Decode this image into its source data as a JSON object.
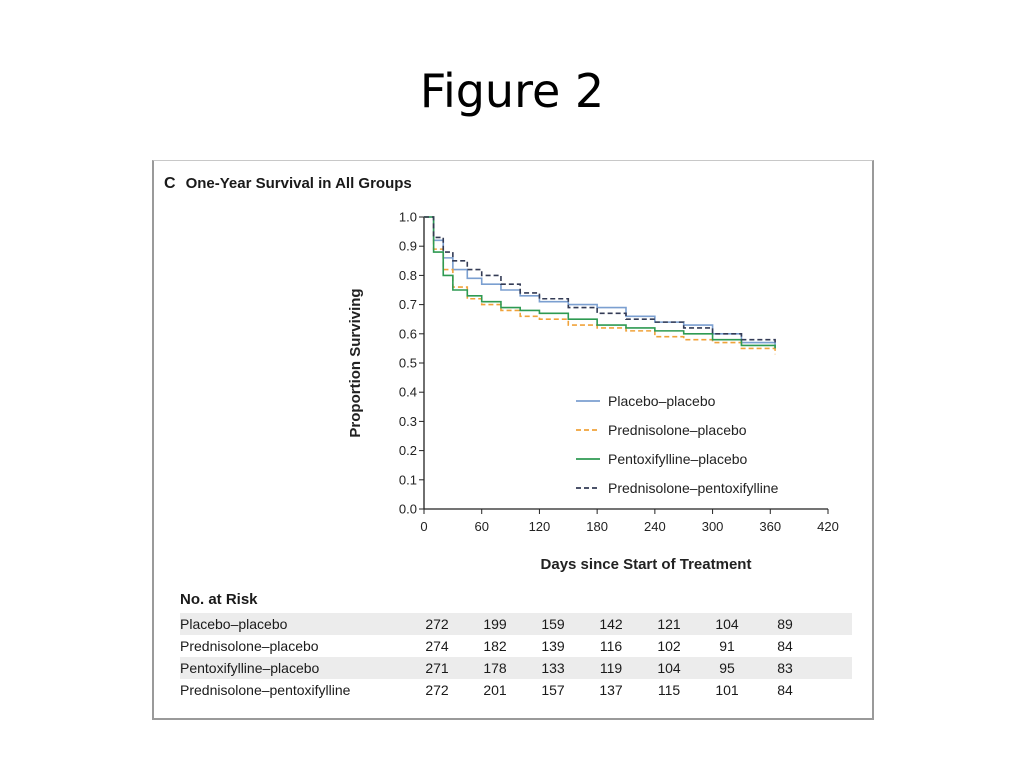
{
  "slide": {
    "title": "Figure 2"
  },
  "panel": {
    "letter": "C",
    "title": "One-Year Survival in All Groups"
  },
  "chart_data": {
    "type": "line",
    "title": "One-Year Survival in All Groups",
    "xlabel": "Days since Start of Treatment",
    "ylabel": "Proportion Surviving",
    "xlim": [
      0,
      420
    ],
    "ylim": [
      0,
      1.0
    ],
    "xticks": [
      0,
      60,
      120,
      180,
      240,
      300,
      360,
      420
    ],
    "yticks": [
      "0.0",
      "0.1",
      "0.2",
      "0.3",
      "0.4",
      "0.5",
      "0.6",
      "0.7",
      "0.8",
      "0.9",
      "1.0"
    ],
    "grid": false,
    "legend_position": "lower-right",
    "series": [
      {
        "name": "Placebo–placebo",
        "color": "#7b9fd0",
        "dash": "solid",
        "x": [
          0,
          10,
          20,
          30,
          45,
          60,
          80,
          100,
          120,
          150,
          180,
          210,
          240,
          270,
          300,
          330,
          365
        ],
        "y": [
          1.0,
          0.92,
          0.86,
          0.82,
          0.79,
          0.77,
          0.75,
          0.73,
          0.71,
          0.7,
          0.69,
          0.66,
          0.64,
          0.63,
          0.6,
          0.57,
          0.55
        ]
      },
      {
        "name": "Prednisolone–placebo",
        "color": "#f0a23a",
        "dash": "dashed",
        "x": [
          0,
          10,
          20,
          30,
          45,
          60,
          80,
          100,
          120,
          150,
          180,
          210,
          240,
          270,
          300,
          330,
          365
        ],
        "y": [
          1.0,
          0.89,
          0.82,
          0.76,
          0.72,
          0.7,
          0.68,
          0.66,
          0.65,
          0.63,
          0.62,
          0.61,
          0.59,
          0.58,
          0.57,
          0.55,
          0.53
        ]
      },
      {
        "name": "Pentoxifylline–placebo",
        "color": "#2e9a52",
        "dash": "solid",
        "x": [
          0,
          10,
          20,
          30,
          45,
          60,
          80,
          100,
          120,
          150,
          180,
          210,
          240,
          270,
          300,
          330,
          365
        ],
        "y": [
          1.0,
          0.88,
          0.8,
          0.75,
          0.73,
          0.71,
          0.69,
          0.68,
          0.67,
          0.65,
          0.63,
          0.62,
          0.61,
          0.6,
          0.58,
          0.56,
          0.55
        ]
      },
      {
        "name": "Prednisolone–pentoxifylline",
        "color": "#333b55",
        "dash": "dashed",
        "x": [
          0,
          10,
          20,
          30,
          45,
          60,
          80,
          100,
          120,
          150,
          180,
          210,
          240,
          270,
          300,
          330,
          365
        ],
        "y": [
          1.0,
          0.93,
          0.88,
          0.85,
          0.82,
          0.8,
          0.77,
          0.74,
          0.72,
          0.69,
          0.67,
          0.65,
          0.64,
          0.62,
          0.6,
          0.58,
          0.57
        ]
      }
    ]
  },
  "risk_table": {
    "title": "No. at Risk",
    "rows": [
      {
        "name": "Placebo–placebo",
        "values": [
          "272",
          "199",
          "159",
          "142",
          "121",
          "104",
          "89"
        ]
      },
      {
        "name": "Prednisolone–placebo",
        "values": [
          "274",
          "182",
          "139",
          "116",
          "102",
          "91",
          "84"
        ]
      },
      {
        "name": "Pentoxifylline–placebo",
        "values": [
          "271",
          "178",
          "133",
          "119",
          "104",
          "95",
          "83"
        ]
      },
      {
        "name": "Prednisolone–pentoxifylline",
        "values": [
          "272",
          "201",
          "157",
          "137",
          "115",
          "101",
          "84"
        ]
      }
    ]
  }
}
